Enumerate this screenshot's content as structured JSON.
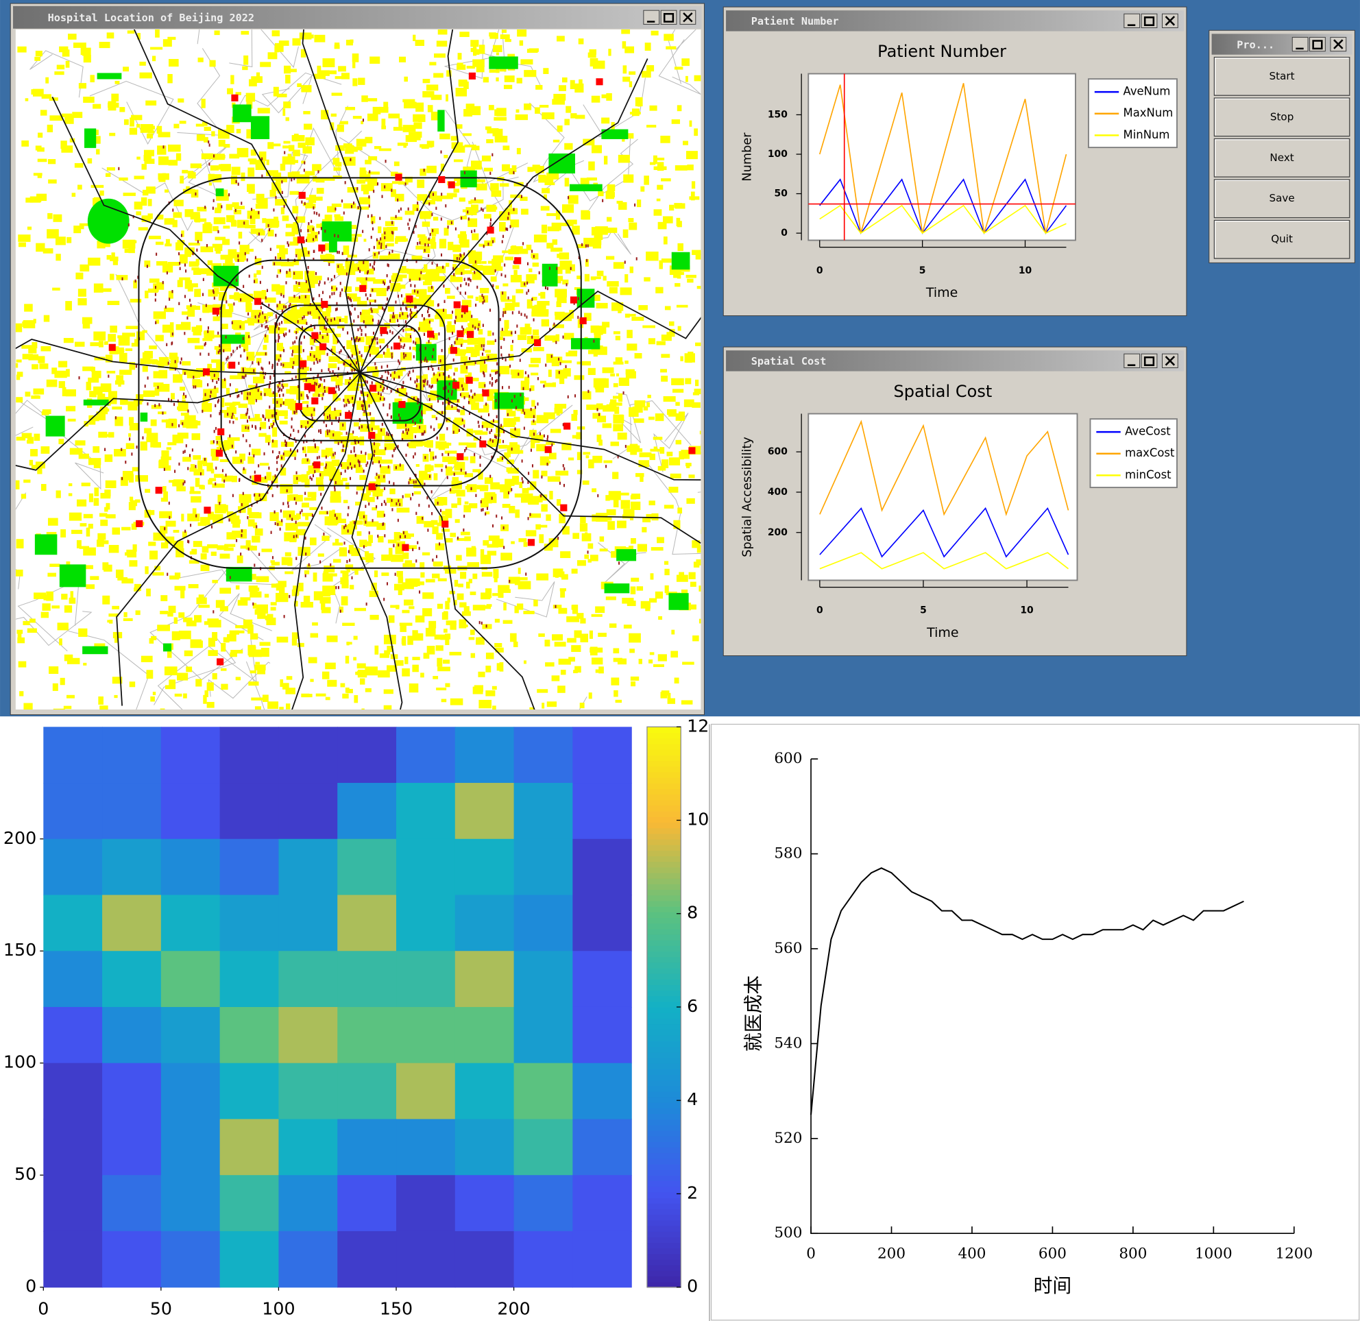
{
  "map_window": {
    "title": "Hospital Location of Beijing 2022"
  },
  "control_window": {
    "title": "Pro...",
    "buttons": [
      "Start",
      "Stop",
      "Next",
      "Save",
      "Quit"
    ]
  },
  "chart_data": [
    {
      "type": "line",
      "window_title": "Patient Number",
      "title": "Patient Number",
      "x_label": "Time",
      "y_label": "Number",
      "x": [
        0,
        1,
        2,
        4,
        5,
        7,
        8,
        10,
        11,
        12
      ],
      "series": [
        {
          "name": "AveNum",
          "color": "#0000ff",
          "values": [
            35,
            68,
            0,
            68,
            0,
            68,
            0,
            68,
            0,
            35
          ]
        },
        {
          "name": "MaxNum",
          "color": "#ffa500",
          "values": [
            100,
            188,
            0,
            178,
            0,
            190,
            0,
            170,
            0,
            100
          ]
        },
        {
          "name": "MinNum",
          "color": "#ffff00",
          "values": [
            18,
            35,
            0,
            35,
            0,
            35,
            0,
            35,
            0,
            12
          ]
        }
      ],
      "xlim": [
        -0.55,
        12.45
      ],
      "ylim": [
        -9,
        202
      ],
      "xticks": [
        0,
        5,
        10
      ],
      "yticks": [
        0,
        50,
        100,
        150
      ],
      "crosshair": [
        1.2,
        37
      ],
      "legend": "right"
    },
    {
      "type": "line",
      "window_title": "Spatial Cost",
      "title": "Spatial Cost",
      "x_label": "Time",
      "y_label": "Spatial Accessibility",
      "x": [
        0,
        2,
        3,
        5,
        6,
        8,
        9,
        10,
        11,
        12
      ],
      "series": [
        {
          "name": "AveCost",
          "color": "#0000ff",
          "values": [
            90,
            320,
            80,
            310,
            80,
            320,
            80,
            200,
            320,
            90
          ]
        },
        {
          "name": "maxCost",
          "color": "#ffa500",
          "values": [
            290,
            750,
            310,
            730,
            290,
            670,
            290,
            580,
            700,
            310
          ]
        },
        {
          "name": "minCost",
          "color": "#ffff00",
          "values": [
            20,
            100,
            20,
            100,
            20,
            100,
            20,
            60,
            100,
            20
          ]
        }
      ],
      "xlim": [
        -0.55,
        12.43
      ],
      "ylim": [
        -37,
        789
      ],
      "xticks": [
        0,
        5,
        10
      ],
      "yticks": [
        200,
        400,
        600
      ],
      "legend": "right"
    },
    {
      "type": "heatmap",
      "z": [
        [
          3,
          3,
          2,
          1,
          1,
          1,
          3,
          4,
          3,
          2
        ],
        [
          3,
          3,
          2,
          1,
          1,
          4,
          6,
          9,
          5,
          2
        ],
        [
          4,
          5,
          4,
          3,
          5,
          7,
          6,
          6,
          5,
          1
        ],
        [
          6,
          9,
          6,
          5,
          5,
          9,
          6,
          5,
          4,
          1
        ],
        [
          4,
          6,
          8,
          6,
          7,
          7,
          7,
          9,
          5,
          2
        ],
        [
          2,
          4,
          5,
          8,
          9,
          8,
          8,
          8,
          5,
          2
        ],
        [
          1,
          2,
          4,
          6,
          7,
          7,
          9,
          6,
          8,
          4
        ],
        [
          1,
          2,
          4,
          9,
          6,
          4,
          4,
          5,
          7,
          3
        ],
        [
          1,
          3,
          4,
          7,
          4,
          2,
          1,
          2,
          3,
          2
        ],
        [
          1,
          2,
          3,
          6,
          3,
          1,
          1,
          1,
          2,
          2
        ]
      ],
      "xlim": [
        0,
        250
      ],
      "ylim": [
        0,
        250
      ],
      "xticks": [
        0,
        50,
        100,
        150,
        200
      ],
      "yticks": [
        0,
        50,
        100,
        150,
        200
      ],
      "clim": [
        0,
        12
      ],
      "cticks": [
        0,
        2,
        4,
        6,
        8,
        10,
        12
      ]
    },
    {
      "type": "line",
      "x_label": "时间",
      "y_label": "就医成本",
      "color": "#000000",
      "x": [
        0,
        25,
        50,
        75,
        100,
        125,
        150,
        175,
        200,
        225,
        250,
        275,
        300,
        325,
        350,
        375,
        400,
        425,
        450,
        475,
        500,
        525,
        550,
        575,
        600,
        625,
        650,
        675,
        700,
        725,
        750,
        775,
        800,
        825,
        850,
        875,
        900,
        925,
        950,
        975,
        1000,
        1025,
        1050,
        1075
      ],
      "values": [
        525,
        548,
        562,
        568,
        571,
        574,
        576,
        577,
        576,
        574,
        572,
        571,
        570,
        568,
        568,
        566,
        566,
        565,
        564,
        563,
        563,
        562,
        563,
        562,
        562,
        563,
        562,
        563,
        563,
        564,
        564,
        564,
        565,
        564,
        566,
        565,
        566,
        567,
        566,
        568,
        568,
        568,
        569,
        570
      ],
      "xlim": [
        0,
        1200
      ],
      "ylim": [
        500,
        600
      ],
      "xticks": [
        0,
        200,
        400,
        600,
        800,
        1000,
        1200
      ],
      "yticks": [
        500,
        520,
        540,
        560,
        580,
        600
      ]
    }
  ]
}
